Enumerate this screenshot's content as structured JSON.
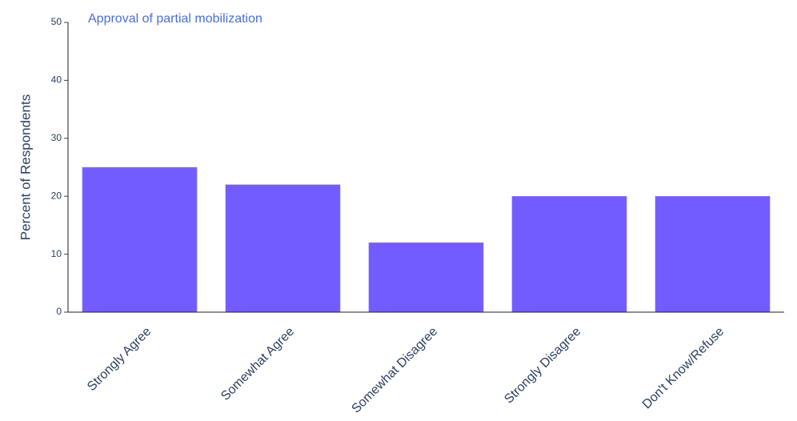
{
  "chart_data": {
    "type": "bar",
    "title": "Approval of partial mobilization",
    "y_label": "Percent of Respondents",
    "categories": [
      "Strongly Agree",
      "Somewhat Agree",
      "Somewhat Disagree",
      "Strongly Disagree",
      "Don't Know/Refuse"
    ],
    "values": [
      25,
      22,
      12,
      20,
      20
    ],
    "color": "#735cff",
    "ylim": [
      0,
      50
    ],
    "yticks": [
      0,
      10,
      20,
      30,
      40,
      50
    ],
    "grid": false
  }
}
